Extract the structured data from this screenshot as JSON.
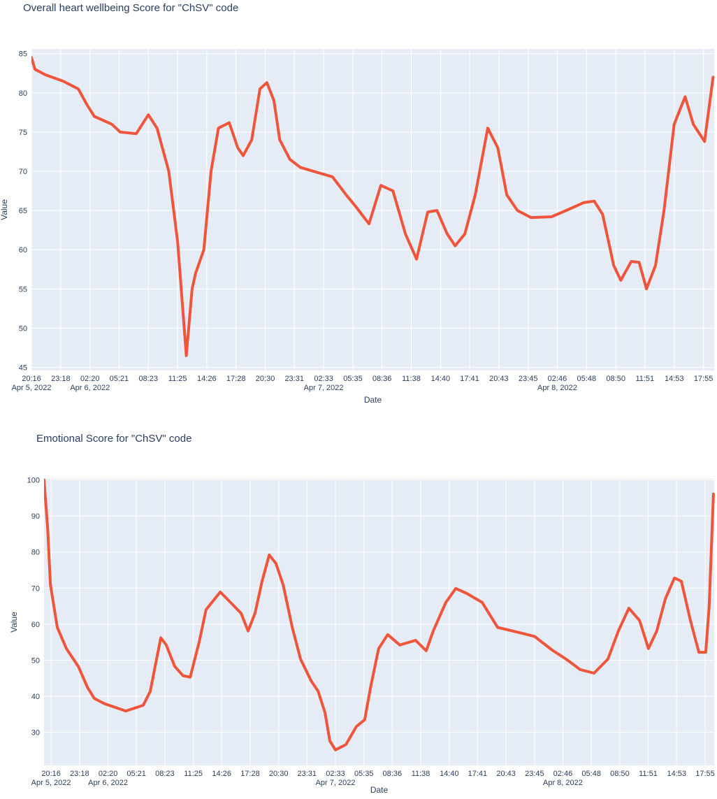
{
  "chart_data": [
    {
      "type": "line",
      "title": "Overall heart wellbeing Score for \"ChSV\" code",
      "x_label": "Date",
      "y_label": "Value",
      "color": "#ef553b",
      "grid": true,
      "x": [
        "2022-04-05T20:16",
        "2022-04-05T20:38",
        "2022-04-05T21:43",
        "2022-04-05T23:32",
        "2022-04-06T01:07",
        "2022-04-06T02:01",
        "2022-04-06T02:47",
        "2022-04-06T04:36",
        "2022-04-06T05:28",
        "2022-04-06T07:08",
        "2022-04-06T08:23",
        "2022-04-06T09:17",
        "2022-04-06T10:30",
        "2022-04-06T11:25",
        "2022-04-06T12:19",
        "2022-04-06T12:55",
        "2022-04-06T13:17",
        "2022-04-06T14:08",
        "2022-04-06T14:53",
        "2022-04-06T15:39",
        "2022-04-06T16:46",
        "2022-04-06T17:39",
        "2022-04-06T18:13",
        "2022-04-06T19:06",
        "2022-04-06T19:57",
        "2022-04-06T20:40",
        "2022-04-06T21:24",
        "2022-04-06T22:00",
        "2022-04-06T23:04",
        "2022-04-07T00:08",
        "2022-04-07T02:20",
        "2022-04-07T03:28",
        "2022-04-07T04:53",
        "2022-04-07T05:53",
        "2022-04-07T07:15",
        "2022-04-07T08:29",
        "2022-04-07T09:44",
        "2022-04-07T11:02",
        "2022-04-07T12:11",
        "2022-04-07T13:20",
        "2022-04-07T14:18",
        "2022-04-07T15:22",
        "2022-04-07T16:11",
        "2022-04-07T17:11",
        "2022-04-07T18:16",
        "2022-04-07T19:34",
        "2022-04-07T20:36",
        "2022-04-07T21:32",
        "2022-04-07T22:38",
        "2022-04-08T00:03",
        "2022-04-08T02:10",
        "2022-04-08T03:41",
        "2022-04-08T05:30",
        "2022-04-08T06:36",
        "2022-04-08T07:28",
        "2022-04-08T08:37",
        "2022-04-08T09:21",
        "2022-04-08T10:26",
        "2022-04-08T11:15",
        "2022-04-08T12:01",
        "2022-04-08T12:57",
        "2022-04-08T13:50",
        "2022-04-08T14:53",
        "2022-04-08T16:01",
        "2022-04-08T16:52",
        "2022-04-08T18:02",
        "2022-04-08T18:55"
      ],
      "values": [
        84.5,
        83,
        82.3,
        81.5,
        80.5,
        78.5,
        77,
        76,
        75,
        74.8,
        77.2,
        75.5,
        70,
        61,
        46.5,
        55,
        57,
        60,
        70,
        75.5,
        76.2,
        73,
        72,
        74,
        80.5,
        81.3,
        79,
        74,
        71.5,
        70.5,
        69.7,
        69.3,
        67,
        65.5,
        63.3,
        68.2,
        67.5,
        62,
        58.8,
        64.8,
        65,
        62,
        60.5,
        62,
        67,
        75.5,
        73,
        67,
        65,
        64.1,
        64.2,
        65,
        66,
        66.2,
        64.5,
        58,
        56.1,
        58.5,
        58.4,
        55,
        58,
        65,
        76,
        79.5,
        76,
        73.8,
        82
      ],
      "xlim": [
        "2022-04-05T20:16",
        "2022-04-08T19:02"
      ],
      "ylim": [
        44.6,
        85.6
      ],
      "yticks": [
        45,
        50,
        55,
        60,
        65,
        70,
        75,
        80,
        85
      ],
      "xticks": [
        {
          "value": "2022-04-05T20:16",
          "label": "20:16",
          "date": "Apr 5, 2022"
        },
        {
          "value": "2022-04-05T23:18",
          "label": "23:18"
        },
        {
          "value": "2022-04-06T02:20",
          "label": "02:20",
          "date": "Apr 6, 2022"
        },
        {
          "value": "2022-04-06T05:21",
          "label": "05:21"
        },
        {
          "value": "2022-04-06T08:23",
          "label": "08:23"
        },
        {
          "value": "2022-04-06T11:25",
          "label": "11:25"
        },
        {
          "value": "2022-04-06T14:26",
          "label": "14:26"
        },
        {
          "value": "2022-04-06T17:28",
          "label": "17:28"
        },
        {
          "value": "2022-04-06T20:30",
          "label": "20:30"
        },
        {
          "value": "2022-04-06T23:31",
          "label": "23:31"
        },
        {
          "value": "2022-04-07T02:33",
          "label": "02:33",
          "date": "Apr 7, 2022"
        },
        {
          "value": "2022-04-07T05:35",
          "label": "05:35"
        },
        {
          "value": "2022-04-07T08:36",
          "label": "08:36"
        },
        {
          "value": "2022-04-07T11:38",
          "label": "11:38"
        },
        {
          "value": "2022-04-07T14:40",
          "label": "14:40"
        },
        {
          "value": "2022-04-07T17:41",
          "label": "17:41"
        },
        {
          "value": "2022-04-07T20:43",
          "label": "20:43"
        },
        {
          "value": "2022-04-07T23:45",
          "label": "23:45"
        },
        {
          "value": "2022-04-08T02:46",
          "label": "02:46",
          "date": "Apr 8, 2022"
        },
        {
          "value": "2022-04-08T05:48",
          "label": "05:48"
        },
        {
          "value": "2022-04-08T08:50",
          "label": "08:50"
        },
        {
          "value": "2022-04-08T11:51",
          "label": "11:51"
        },
        {
          "value": "2022-04-08T14:53",
          "label": "14:53"
        },
        {
          "value": "2022-04-08T17:55",
          "label": "17:55"
        }
      ]
    },
    {
      "type": "line",
      "title": "Emotional Score for \"ChSV\" code",
      "x_label": "Date",
      "y_label": "Value",
      "color": "#ef553b",
      "grid": true,
      "x": [
        "2022-04-05T19:31",
        "2022-04-05T19:54",
        "2022-04-05T20:12",
        "2022-04-05T20:56",
        "2022-04-05T21:54",
        "2022-04-05T23:10",
        "2022-04-06T00:09",
        "2022-04-06T00:52",
        "2022-04-06T01:59",
        "2022-04-06T04:14",
        "2022-04-06T06:05",
        "2022-04-06T06:50",
        "2022-04-06T07:21",
        "2022-04-06T07:57",
        "2022-04-06T08:32",
        "2022-04-06T09:26",
        "2022-04-06T10:19",
        "2022-04-06T11:05",
        "2022-04-06T12:03",
        "2022-04-06T12:46",
        "2022-04-06T14:17",
        "2022-04-06T15:23",
        "2022-04-06T16:30",
        "2022-04-06T17:15",
        "2022-04-06T17:59",
        "2022-04-06T18:44",
        "2022-04-06T19:30",
        "2022-04-06T20:13",
        "2022-04-06T20:59",
        "2022-04-06T21:57",
        "2022-04-06T22:50",
        "2022-04-06T23:57",
        "2022-04-07T00:42",
        "2022-04-07T01:26",
        "2022-04-07T01:57",
        "2022-04-07T02:33",
        "2022-04-07T03:40",
        "2022-04-07T04:47",
        "2022-04-07T05:40",
        "2022-04-07T06:17",
        "2022-04-07T07:09",
        "2022-04-07T08:07",
        "2022-04-07T09:24",
        "2022-04-07T11:05",
        "2022-04-07T12:13",
        "2022-04-07T12:58",
        "2022-04-07T14:18",
        "2022-04-07T15:22",
        "2022-04-07T16:33",
        "2022-04-07T18:11",
        "2022-04-07T19:49",
        "2022-04-07T21:54",
        "2022-04-07T23:45",
        "2022-04-08T01:38",
        "2022-04-08T03:07",
        "2022-04-08T04:36",
        "2022-04-08T06:05",
        "2022-04-08T07:34",
        "2022-04-08T08:41",
        "2022-04-08T09:48",
        "2022-04-08T10:56",
        "2022-04-08T11:53",
        "2022-04-08T12:46",
        "2022-04-08T13:41",
        "2022-04-08T14:39",
        "2022-04-08T15:23",
        "2022-04-08T16:21",
        "2022-04-08T17:15",
        "2022-04-08T17:59",
        "2022-04-08T18:21",
        "2022-04-08T18:48"
      ],
      "values": [
        100,
        86.6,
        70.9,
        59.1,
        53.2,
        48.3,
        42.4,
        39.4,
        37.9,
        35.9,
        37.5,
        41.4,
        48.3,
        56.2,
        54.2,
        48.3,
        45.7,
        45.3,
        55.2,
        64,
        68.9,
        66,
        63,
        58.1,
        63,
        71.9,
        79.2,
        76.8,
        70.9,
        59.1,
        50.3,
        44.3,
        41.4,
        35.5,
        27.6,
        25.1,
        26.6,
        31.6,
        33.5,
        42.4,
        53.2,
        57.1,
        54.2,
        55.5,
        52.6,
        58.1,
        66,
        69.9,
        68.5,
        66,
        59.1,
        57.8,
        56.6,
        52.8,
        50.3,
        47.4,
        46.4,
        50.3,
        58.1,
        64.4,
        61,
        53.2,
        58.1,
        67,
        72.8,
        71.9,
        61,
        52.2,
        52.2,
        65,
        96.1
      ],
      "xlim": [
        "2022-04-05T19:31",
        "2022-04-08T18:53"
      ],
      "ylim": [
        20.8,
        100.3
      ],
      "yticks": [
        30,
        40,
        50,
        60,
        70,
        80,
        90,
        100
      ],
      "xticks": [
        {
          "value": "2022-04-05T20:16",
          "label": "20:16",
          "date": "Apr 5, 2022"
        },
        {
          "value": "2022-04-05T23:18",
          "label": "23:18"
        },
        {
          "value": "2022-04-06T02:20",
          "label": "02:20",
          "date": "Apr 6, 2022"
        },
        {
          "value": "2022-04-06T05:21",
          "label": "05:21"
        },
        {
          "value": "2022-04-06T08:23",
          "label": "08:23"
        },
        {
          "value": "2022-04-06T11:25",
          "label": "11:25"
        },
        {
          "value": "2022-04-06T14:26",
          "label": "14:26"
        },
        {
          "value": "2022-04-06T17:28",
          "label": "17:28"
        },
        {
          "value": "2022-04-06T20:30",
          "label": "20:30"
        },
        {
          "value": "2022-04-06T23:31",
          "label": "23:31"
        },
        {
          "value": "2022-04-07T02:33",
          "label": "02:33",
          "date": "Apr 7, 2022"
        },
        {
          "value": "2022-04-07T05:35",
          "label": "05:35"
        },
        {
          "value": "2022-04-07T08:36",
          "label": "08:36"
        },
        {
          "value": "2022-04-07T11:38",
          "label": "11:38"
        },
        {
          "value": "2022-04-07T14:40",
          "label": "14:40"
        },
        {
          "value": "2022-04-07T17:41",
          "label": "17:41"
        },
        {
          "value": "2022-04-07T20:43",
          "label": "20:43"
        },
        {
          "value": "2022-04-07T23:45",
          "label": "23:45"
        },
        {
          "value": "2022-04-08T02:46",
          "label": "02:46",
          "date": "Apr 8, 2022"
        },
        {
          "value": "2022-04-08T05:48",
          "label": "05:48"
        },
        {
          "value": "2022-04-08T08:50",
          "label": "08:50"
        },
        {
          "value": "2022-04-08T11:51",
          "label": "11:51"
        },
        {
          "value": "2022-04-08T14:53",
          "label": "14:53"
        },
        {
          "value": "2022-04-08T17:55",
          "label": "17:55"
        }
      ]
    }
  ]
}
